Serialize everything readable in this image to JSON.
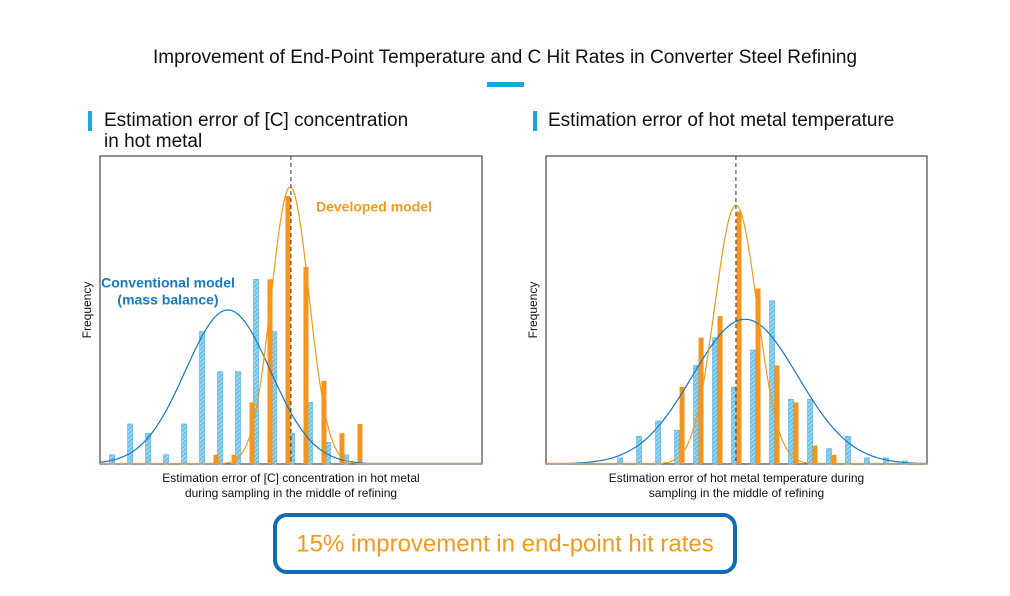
{
  "title": "Improvement of End-Point Temperature and C Hit Rates in Converter Steel Refining",
  "chart_data": [
    {
      "type": "bar",
      "subtitle": [
        "Estimation error of [C] concentration",
        "in hot metal"
      ],
      "ylabel": "Frequency",
      "xlabel": [
        "Estimation error of [C] concentration in hot metal",
        "during sampling in the middle of refining"
      ],
      "categories": [
        null,
        null,
        null,
        null,
        null,
        null,
        null,
        null,
        null,
        null,
        null,
        null,
        null,
        null,
        null
      ],
      "xlim": [
        -0.67,
        20.56
      ],
      "ylim": [
        0,
        100
      ],
      "vline": 9.94,
      "series": [
        {
          "name": [
            "Conventional model",
            "(mass balance)"
          ],
          "color": "#1a78c2",
          "bar_color": "#6cc4ec",
          "values": [
            3,
            13,
            10,
            3,
            13,
            43,
            30,
            30,
            60,
            43,
            10,
            20,
            7,
            3,
            0
          ],
          "fit": {
            "center": 6.44,
            "width": 2.36,
            "peak": 50
          }
        },
        {
          "name": [
            "Developed model"
          ],
          "color": "#f39a1e",
          "bar_color": "#f7941d",
          "values": [
            0,
            0,
            0,
            0,
            0,
            0,
            3,
            3,
            20,
            60,
            87,
            64,
            27,
            10,
            13
          ],
          "fit": {
            "center": 9.9,
            "width": 1.05,
            "peak": 90
          }
        }
      ]
    },
    {
      "type": "bar",
      "subtitle": [
        "Estimation error of hot metal temperature"
      ],
      "ylabel": "Frequency",
      "xlabel": [
        "Estimation error of hot metal temperature during",
        "sampling in the middle of refining"
      ],
      "categories": [
        null,
        null,
        null,
        null,
        null,
        null,
        null,
        null,
        null,
        null,
        null,
        null,
        null,
        null,
        null,
        null
      ],
      "xlim": [
        -3.9,
        16.16
      ],
      "ylim": [
        0,
        100
      ],
      "vline": 6.1,
      "series": [
        {
          "color": "#1a78c2",
          "bar_color": "#6cc4ec",
          "values": [
            2,
            9,
            14,
            11,
            32,
            41,
            25,
            37,
            53,
            21,
            21,
            5,
            9,
            2,
            2,
            1
          ],
          "fit": {
            "center": 6.58,
            "width": 2.78,
            "peak": 47
          }
        },
        {
          "color": "#f39a1e",
          "bar_color": "#f7941d",
          "values": [
            0,
            0,
            0,
            25,
            41,
            48,
            82,
            57,
            32,
            20,
            6,
            3,
            0,
            0,
            0,
            0
          ],
          "fit": {
            "center": 6.1,
            "width": 1.12,
            "peak": 84
          }
        }
      ]
    }
  ],
  "callout": "15% improvement in end-point hit rates"
}
